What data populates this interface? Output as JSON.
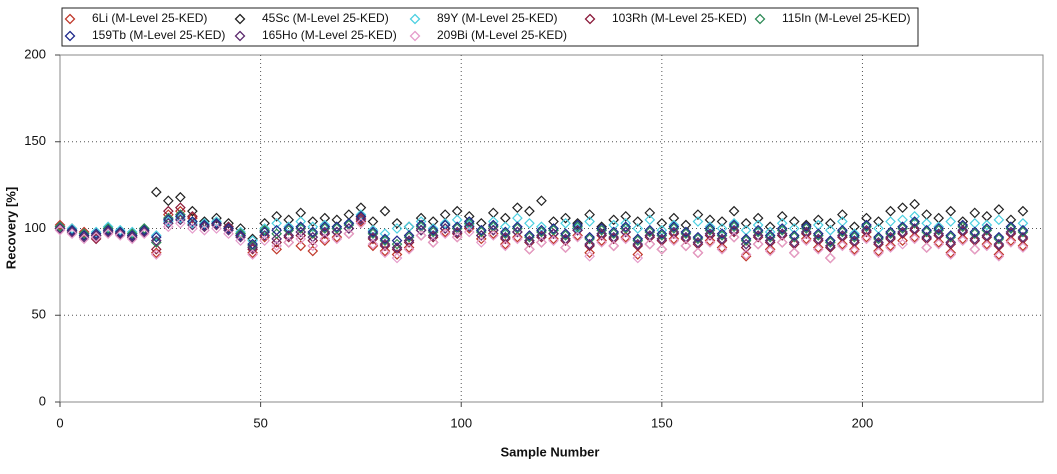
{
  "chart_data": {
    "type": "scatter",
    "x_label": "Sample Number",
    "y_label": "Recovery [%]",
    "xlim": [
      0,
      245
    ],
    "xticks": [
      0,
      50,
      100,
      150,
      200
    ],
    "ylim": [
      0,
      200
    ],
    "yticks": [
      0,
      50,
      100,
      150,
      200
    ],
    "grid": true,
    "legend": "top",
    "x": [
      0,
      3,
      6,
      9,
      12,
      15,
      18,
      21,
      24,
      27,
      30,
      33,
      36,
      39,
      42,
      45,
      48,
      51,
      54,
      57,
      60,
      63,
      66,
      69,
      72,
      75,
      78,
      81,
      84,
      87,
      90,
      93,
      96,
      99,
      102,
      105,
      108,
      111,
      114,
      117,
      120,
      123,
      126,
      129,
      132,
      135,
      138,
      141,
      144,
      147,
      150,
      153,
      156,
      159,
      162,
      165,
      168,
      171,
      174,
      177,
      180,
      183,
      186,
      189,
      192,
      195,
      198,
      201,
      204,
      207,
      210,
      213,
      216,
      219,
      222,
      225,
      228,
      231,
      234,
      237,
      240
    ],
    "series": [
      {
        "name": "6Li (M-Level 25-KED)",
        "color": "#c0392b",
        "values": [
          102,
          100,
          98,
          95,
          99,
          97,
          96,
          100,
          86,
          108,
          110,
          106,
          101,
          102,
          100,
          97,
          86,
          95,
          88,
          92,
          90,
          87,
          93,
          95,
          97,
          104,
          90,
          87,
          85,
          89,
          96,
          92,
          98,
          95,
          100,
          94,
          97,
          91,
          95,
          88,
          92,
          94,
          89,
          96,
          86,
          93,
          90,
          95,
          85,
          91,
          88,
          94,
          90,
          86,
          93,
          89,
          95,
          84,
          91,
          88,
          92,
          86,
          94,
          89,
          83,
          91,
          88,
          95,
          87,
          90,
          93,
          95,
          89,
          92,
          86,
          94,
          88,
          91,
          85,
          93,
          90
        ]
      },
      {
        "name": "45Sc (M-Level 25-KED)",
        "color": "#222222",
        "values": [
          101,
          99,
          97,
          96,
          100,
          98,
          97,
          99,
          121,
          116,
          118,
          110,
          104,
          106,
          103,
          100,
          94,
          103,
          107,
          105,
          109,
          104,
          106,
          105,
          108,
          112,
          104,
          110,
          103,
          101,
          106,
          104,
          108,
          110,
          107,
          103,
          109,
          106,
          112,
          110,
          116,
          104,
          106,
          103,
          108,
          101,
          105,
          107,
          104,
          109,
          103,
          106,
          102,
          108,
          105,
          104,
          110,
          103,
          106,
          101,
          107,
          104,
          102,
          105,
          103,
          108,
          101,
          106,
          104,
          110,
          112,
          114,
          108,
          106,
          110,
          104,
          109,
          107,
          111,
          105,
          110
        ]
      },
      {
        "name": "89Y (M-Level 25-KED)",
        "color": "#4dd0e1",
        "values": [
          101,
          100,
          97,
          98,
          101,
          99,
          98,
          100,
          96,
          104,
          106,
          103,
          103,
          104,
          101,
          98,
          93,
          100,
          103,
          101,
          104,
          101,
          102,
          100,
          103,
          108,
          99,
          97,
          100,
          101,
          104,
          100,
          103,
          105,
          102,
          99,
          104,
          101,
          106,
          103,
          101,
          99,
          103,
          100,
          104,
          97,
          102,
          103,
          100,
          105,
          99,
          102,
          98,
          104,
          101,
          100,
          103,
          99,
          102,
          98,
          103,
          100,
          98,
          102,
          99,
          104,
          97,
          101,
          100,
          104,
          105,
          107,
          103,
          101,
          104,
          99,
          103,
          102,
          105,
          100,
          103
        ]
      },
      {
        "name": "103Rh (M-Level 25-KED)",
        "color": "#8b1a3a",
        "values": [
          100,
          98,
          96,
          94,
          98,
          97,
          95,
          99,
          88,
          110,
          112,
          107,
          102,
          103,
          101,
          96,
          88,
          98,
          92,
          95,
          96,
          93,
          97,
          98,
          100,
          106,
          94,
          90,
          88,
          92,
          99,
          95,
          100,
          97,
          101,
          96,
          99,
          94,
          98,
          92,
          95,
          97,
          93,
          99,
          90,
          96,
          94,
          98,
          90,
          95,
          93,
          97,
          94,
          91,
          96,
          93,
          98,
          89,
          95,
          92,
          96,
          91,
          97,
          93,
          89,
          95,
          92,
          98,
          91,
          94,
          97,
          99,
          94,
          96,
          91,
          98,
          93,
          95,
          90,
          97,
          94
        ]
      },
      {
        "name": "115In (M-Level 25-KED)",
        "color": "#2e8b57",
        "values": [
          101,
          99,
          97,
          96,
          100,
          98,
          97,
          100,
          92,
          106,
          108,
          104,
          102,
          103,
          100,
          97,
          90,
          99,
          97,
          99,
          100,
          97,
          100,
          100,
          102,
          107,
          97,
          93,
          91,
          95,
          101,
          98,
          102,
          100,
          103,
          98,
          101,
          97,
          100,
          95,
          98,
          99,
          96,
          101,
          94,
          99,
          97,
          100,
          93,
          98,
          96,
          100,
          97,
          94,
          99,
          96,
          101,
          93,
          98,
          95,
          99,
          95,
          100,
          96,
          92,
          98,
          95,
          101,
          94,
          97,
          100,
          103,
          98,
          99,
          95,
          101,
          97,
          99,
          94,
          100,
          98
        ]
      },
      {
        "name": "159Tb (M-Level 25-KED)",
        "color": "#1f2a8c",
        "values": [
          100,
          99,
          96,
          97,
          99,
          98,
          96,
          99,
          95,
          105,
          107,
          104,
          102,
          103,
          100,
          96,
          91,
          98,
          99,
          100,
          101,
          98,
          101,
          101,
          103,
          107,
          98,
          94,
          93,
          96,
          102,
          99,
          102,
          101,
          104,
          99,
          102,
          98,
          101,
          96,
          99,
          100,
          97,
          102,
          95,
          100,
          98,
          101,
          94,
          99,
          97,
          101,
          98,
          95,
          100,
          97,
          102,
          94,
          99,
          96,
          100,
          96,
          101,
          97,
          93,
          99,
          96,
          102,
          95,
          98,
          101,
          104,
          99,
          100,
          96,
          102,
          98,
          100,
          95,
          101,
          99
        ]
      },
      {
        "name": "165Ho (M-Level 25-KED)",
        "color": "#5b2a6e",
        "values": [
          100,
          98,
          95,
          96,
          98,
          97,
          95,
          98,
          93,
          103,
          105,
          102,
          101,
          102,
          99,
          95,
          89,
          96,
          94,
          96,
          98,
          95,
          98,
          98,
          100,
          105,
          95,
          91,
          89,
          93,
          99,
          96,
          100,
          98,
          101,
          96,
          99,
          95,
          98,
          93,
          96,
          97,
          94,
          99,
          91,
          97,
          95,
          98,
          91,
          96,
          94,
          98,
          95,
          92,
          97,
          94,
          99,
          91,
          96,
          93,
          97,
          92,
          98,
          94,
          90,
          96,
          93,
          99,
          92,
          95,
          98,
          100,
          95,
          97,
          92,
          99,
          94,
          96,
          91,
          98,
          95
        ]
      },
      {
        "name": "209Bi (M-Level 25-KED)",
        "color": "#e59ccb",
        "values": [
          99,
          97,
          94,
          95,
          97,
          96,
          94,
          97,
          85,
          101,
          103,
          100,
          99,
          100,
          97,
          93,
          85,
          93,
          90,
          92,
          94,
          90,
          94,
          94,
          97,
          103,
          91,
          86,
          83,
          88,
          96,
          92,
          97,
          95,
          98,
          92,
          96,
          90,
          94,
          88,
          92,
          93,
          89,
          95,
          84,
          92,
          90,
          94,
          83,
          91,
          88,
          93,
          90,
          86,
          92,
          88,
          95,
          85,
          91,
          87,
          92,
          86,
          93,
          88,
          83,
          90,
          87,
          94,
          86,
          89,
          91,
          94,
          89,
          91,
          85,
          93,
          88,
          90,
          84,
          92,
          89
        ]
      }
    ]
  }
}
